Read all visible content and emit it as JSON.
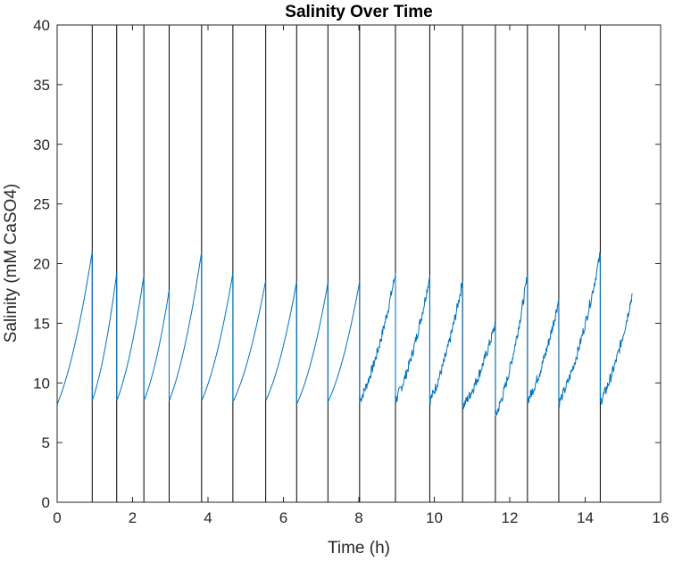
{
  "chart_data": {
    "type": "line",
    "title": "Salinity Over Time",
    "xlabel": "Time (h)",
    "ylabel": "Salinity (mM CaSO4)",
    "xlim": [
      0,
      16
    ],
    "ylim": [
      0,
      40
    ],
    "xticks": [
      0,
      2,
      4,
      6,
      8,
      10,
      12,
      14,
      16
    ],
    "yticks": [
      0,
      5,
      10,
      15,
      20,
      25,
      30,
      35,
      40
    ],
    "grid": false,
    "line_color": "#0072BD",
    "vline_color": "#000000",
    "vertical_lines": [
      0.93,
      1.58,
      2.3,
      2.97,
      3.83,
      4.66,
      5.53,
      6.35,
      7.18,
      8.02,
      8.97,
      9.88,
      10.75,
      11.62,
      12.47,
      13.3,
      14.4
    ],
    "segments": [
      {
        "x0": 0.0,
        "x1": 0.93,
        "y0": 8.2,
        "y1": 21.0
      },
      {
        "x0": 0.93,
        "x1": 1.58,
        "y0": 8.5,
        "y1": 19.2
      },
      {
        "x0": 1.58,
        "x1": 2.3,
        "y0": 8.5,
        "y1": 19.0
      },
      {
        "x0": 2.3,
        "x1": 2.97,
        "y0": 8.5,
        "y1": 17.8
      },
      {
        "x0": 2.97,
        "x1": 3.83,
        "y0": 8.5,
        "y1": 21.0
      },
      {
        "x0": 3.83,
        "x1": 4.66,
        "y0": 8.5,
        "y1": 19.2
      },
      {
        "x0": 4.66,
        "x1": 5.53,
        "y0": 8.4,
        "y1": 18.6
      },
      {
        "x0": 5.53,
        "x1": 6.35,
        "y0": 8.5,
        "y1": 18.5
      },
      {
        "x0": 6.35,
        "x1": 7.18,
        "y0": 8.2,
        "y1": 18.4
      },
      {
        "x0": 7.18,
        "x1": 8.02,
        "y0": 8.4,
        "y1": 18.5
      },
      {
        "x0": 8.02,
        "x1": 8.97,
        "y0": 8.5,
        "y1": 19.2
      },
      {
        "x0": 8.97,
        "x1": 9.88,
        "y0": 8.5,
        "y1": 19.0
      },
      {
        "x0": 9.88,
        "x1": 10.75,
        "y0": 8.5,
        "y1": 18.6
      },
      {
        "x0": 10.75,
        "x1": 11.62,
        "y0": 8.0,
        "y1": 15.0
      },
      {
        "x0": 11.62,
        "x1": 12.47,
        "y0": 7.2,
        "y1": 19.0
      },
      {
        "x0": 12.47,
        "x1": 13.3,
        "y0": 8.5,
        "y1": 17.0
      },
      {
        "x0": 13.3,
        "x1": 14.4,
        "y0": 8.3,
        "y1": 20.8
      },
      {
        "x0": 14.4,
        "x1": 15.25,
        "y0": 8.4,
        "y1": 17.5
      }
    ]
  }
}
